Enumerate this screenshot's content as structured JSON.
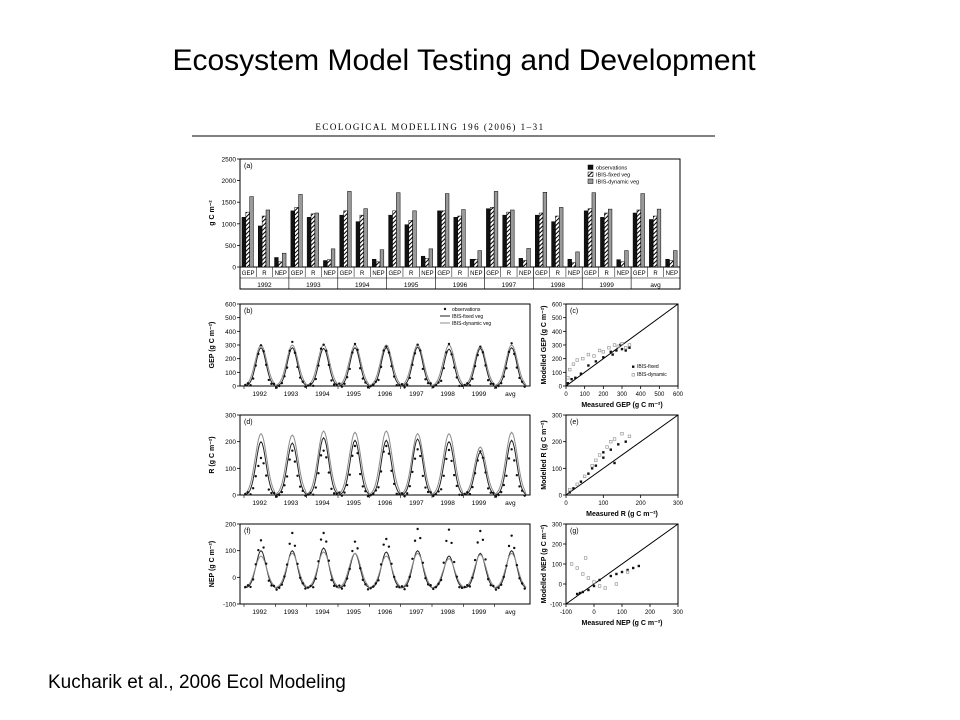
{
  "page": {
    "title": "Ecosystem Model Testing and Development",
    "citation": "Kucharik et al., 2006 Ecol Modeling",
    "journal_header": "ECOLOGICAL MODELLING 196 (2006) 1–31"
  },
  "colors": {
    "observations": "#111111",
    "fixed_veg": "#ffffff",
    "dynamic_veg": "#9a9a9a",
    "line_fixed": "#222222",
    "line_dynamic": "#8c8c8c",
    "one_to_one": "#000000"
  },
  "chart_data": [
    {
      "panel": "(a)",
      "type": "bar",
      "ylabel": "g C m⁻²",
      "ylim": [
        0,
        2500
      ],
      "yticks": [
        0,
        500,
        1000,
        1500,
        2000,
        2500
      ],
      "group_labels": [
        "1992",
        "1993",
        "1994",
        "1995",
        "1996",
        "1997",
        "1998",
        "1999",
        "avg"
      ],
      "sub_categories": [
        "GEP",
        "R",
        "NEP"
      ],
      "legend": [
        "observations",
        "IBIS-fixed veg",
        "IBIS-dynamic veg"
      ],
      "legend_position": "top-right",
      "series": [
        {
          "name": "observations",
          "values": [
            [
              1150,
              950,
              220
            ],
            [
              1300,
              1150,
              150
            ],
            [
              1200,
              1050,
              180
            ],
            [
              1200,
              980,
              250
            ],
            [
              1300,
              1150,
              180
            ],
            [
              1350,
              1200,
              200
            ],
            [
              1200,
              1050,
              180
            ],
            [
              1300,
              1150,
              170
            ],
            [
              1250,
              1100,
              180
            ]
          ]
        },
        {
          "name": "IBIS-fixed veg",
          "values": [
            [
              1270,
              1180,
              120
            ],
            [
              1380,
              1230,
              170
            ],
            [
              1300,
              1200,
              120
            ],
            [
              1300,
              1080,
              200
            ],
            [
              1300,
              1180,
              180
            ],
            [
              1380,
              1270,
              150
            ],
            [
              1250,
              1180,
              100
            ],
            [
              1350,
              1250,
              120
            ],
            [
              1320,
              1180,
              150
            ]
          ]
        },
        {
          "name": "IBIS-dynamic veg",
          "values": [
            [
              1630,
              1320,
              320
            ],
            [
              1680,
              1250,
              420
            ],
            [
              1750,
              1350,
              400
            ],
            [
              1720,
              1300,
              420
            ],
            [
              1700,
              1330,
              380
            ],
            [
              1750,
              1320,
              430
            ],
            [
              1730,
              1380,
              350
            ],
            [
              1720,
              1340,
              380
            ],
            [
              1700,
              1340,
              380
            ]
          ]
        }
      ]
    },
    {
      "panel": "(b)",
      "type": "line",
      "ylabel": "GEP (g C m⁻²)",
      "ylim": [
        0,
        600
      ],
      "yticks": [
        0,
        100,
        200,
        300,
        400,
        500,
        600
      ],
      "x_labels": [
        "1992",
        "1993",
        "1994",
        "1995",
        "1996",
        "1997",
        "1998",
        "1999",
        "avg"
      ],
      "legend": [
        "observations",
        "IBIS-fixed veg",
        "IBIS-dynamic veg"
      ],
      "legend_position": "top-right",
      "seasonal_peaks": {
        "observations": [
          300,
          310,
          310,
          300,
          300,
          300,
          290,
          290,
          300
        ],
        "IBIS-fixed veg": [
          280,
          280,
          275,
          280,
          280,
          285,
          270,
          275,
          280
        ],
        "IBIS-dynamic veg": [
          300,
          300,
          300,
          300,
          300,
          300,
          300,
          290,
          300
        ]
      }
    },
    {
      "panel": "(c)",
      "type": "scatter",
      "xlabel": "Measured GEP (g C m⁻²)",
      "ylabel": "Modelled GEP (g C m⁻²)",
      "xlim": [
        0,
        600
      ],
      "ylim": [
        0,
        600
      ],
      "xticks": [
        0,
        100,
        200,
        300,
        400,
        500,
        600
      ],
      "yticks": [
        0,
        100,
        200,
        300,
        400,
        500,
        600
      ],
      "legend": [
        "IBIS-fixed",
        "IBIS-dynamic"
      ],
      "legend_position": "bottom-right",
      "series": [
        {
          "name": "IBIS-fixed",
          "x": [
            10,
            30,
            50,
            80,
            120,
            160,
            200,
            240,
            270,
            300,
            320,
            340,
            290,
            250
          ],
          "y": [
            20,
            50,
            60,
            90,
            150,
            180,
            210,
            250,
            260,
            270,
            260,
            280,
            300,
            230
          ]
        },
        {
          "name": "IBIS-dynamic",
          "x": [
            10,
            20,
            40,
            60,
            90,
            120,
            150,
            200,
            230,
            260,
            280,
            300,
            320,
            340,
            180
          ],
          "y": [
            60,
            120,
            160,
            190,
            200,
            230,
            220,
            250,
            280,
            300,
            290,
            310,
            280,
            300,
            260
          ]
        }
      ]
    },
    {
      "panel": "(d)",
      "type": "line",
      "ylabel": "R (g C m⁻²)",
      "ylim": [
        0,
        300
      ],
      "yticks": [
        0,
        100,
        200,
        300
      ],
      "x_labels": [
        "1992",
        "1993",
        "1994",
        "1995",
        "1996",
        "1997",
        "1998",
        "1999",
        "avg"
      ],
      "seasonal_peaks": {
        "observations": [
          140,
          160,
          170,
          180,
          190,
          170,
          160,
          165,
          165
        ],
        "IBIS-fixed veg": [
          200,
          195,
          215,
          205,
          205,
          210,
          200,
          160,
          205
        ],
        "IBIS-dynamic veg": [
          230,
          225,
          240,
          235,
          240,
          230,
          230,
          180,
          235
        ]
      }
    },
    {
      "panel": "(e)",
      "type": "scatter",
      "xlabel": "Measured R (g C m⁻²)",
      "ylabel": "Modelled R (g C m⁻²)",
      "xlim": [
        0,
        300
      ],
      "ylim": [
        0,
        300
      ],
      "xticks": [
        0,
        100,
        200,
        300
      ],
      "yticks": [
        0,
        100,
        200,
        300
      ],
      "series": [
        {
          "name": "IBIS-fixed",
          "x": [
            10,
            20,
            40,
            60,
            80,
            100,
            120,
            140,
            160,
            100,
            70,
            130
          ],
          "y": [
            10,
            25,
            50,
            80,
            110,
            140,
            170,
            190,
            200,
            160,
            100,
            120
          ]
        },
        {
          "name": "IBIS-dynamic",
          "x": [
            10,
            30,
            50,
            70,
            90,
            110,
            130,
            150,
            170,
            120,
            80
          ],
          "y": [
            20,
            40,
            70,
            110,
            150,
            180,
            210,
            230,
            220,
            200,
            130
          ]
        }
      ]
    },
    {
      "panel": "(f)",
      "type": "line",
      "ylabel": "NEP (g C m⁻²)",
      "ylim": [
        -100,
        200
      ],
      "yticks": [
        -100,
        0,
        100,
        200
      ],
      "x_labels": [
        "1992",
        "1993",
        "1994",
        "1995",
        "1996",
        "1997",
        "1998",
        "1999",
        "avg"
      ],
      "seasonal_peaks": {
        "observations": [
          140,
          160,
          170,
          130,
          150,
          180,
          170,
          175,
          150
        ],
        "IBIS-fixed veg": [
          100,
          100,
          110,
          90,
          95,
          100,
          80,
          90,
          100
        ],
        "IBIS-dynamic veg": [
          80,
          90,
          95,
          90,
          80,
          90,
          70,
          85,
          90
        ]
      }
    },
    {
      "panel": "(g)",
      "type": "scatter",
      "xlabel": "Measured NEP (g C m⁻²)",
      "ylabel": "Modelled NEP (g C m⁻²)",
      "xlim": [
        -100,
        300
      ],
      "ylim": [
        -100,
        300
      ],
      "xticks": [
        -100,
        0,
        100,
        200,
        300
      ],
      "yticks": [
        -100,
        0,
        100,
        200,
        300
      ],
      "series": [
        {
          "name": "IBIS-fixed",
          "x": [
            -60,
            -40,
            -20,
            0,
            20,
            60,
            100,
            120,
            140,
            160,
            -50,
            80
          ],
          "y": [
            -50,
            -40,
            -30,
            -10,
            20,
            40,
            60,
            70,
            80,
            90,
            -45,
            50
          ]
        },
        {
          "name": "IBIS-dynamic",
          "x": [
            -80,
            -60,
            -40,
            -20,
            0,
            40,
            80,
            120,
            -30,
            20
          ],
          "y": [
            100,
            80,
            50,
            30,
            10,
            -20,
            0,
            60,
            130,
            -10
          ]
        }
      ]
    }
  ]
}
